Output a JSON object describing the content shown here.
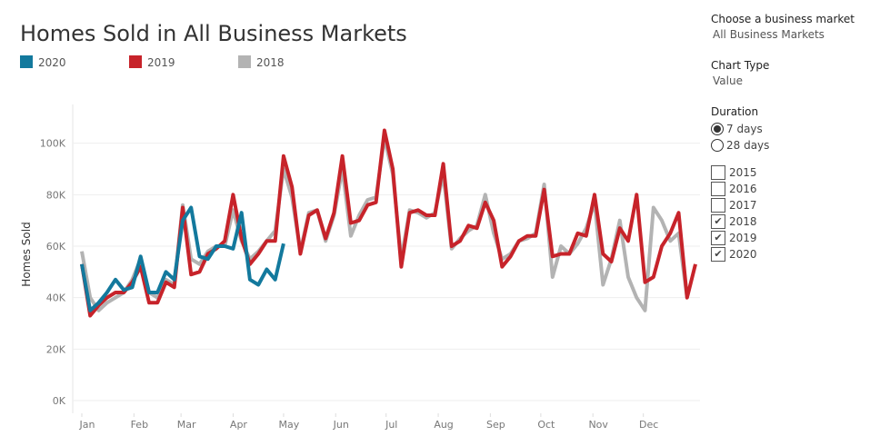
{
  "chart_data": {
    "type": "line",
    "title": "Homes Sold in All Business Markets",
    "y_label": "Homes Sold",
    "x": [
      1,
      6,
      11,
      16,
      21,
      26,
      31,
      36,
      41,
      46,
      51,
      56,
      61,
      66,
      71,
      76,
      81,
      86,
      91,
      96,
      101,
      106,
      111,
      116,
      121,
      126,
      131,
      136,
      141,
      146,
      151,
      156,
      161,
      166,
      171,
      176,
      181,
      186,
      191,
      196,
      201,
      206,
      211,
      216,
      221,
      226,
      231,
      236,
      241,
      246,
      251,
      256,
      261,
      266,
      271,
      276,
      281,
      286,
      291,
      296,
      301,
      306,
      311,
      316,
      321,
      326,
      331,
      336,
      341,
      346,
      351,
      356,
      361,
      366
    ],
    "xlim": [
      1,
      366
    ],
    "xticks": [
      {
        "value": 1,
        "label": "Jan"
      },
      {
        "value": 32,
        "label": "Feb"
      },
      {
        "value": 60,
        "label": "Mar"
      },
      {
        "value": 91,
        "label": "Apr"
      },
      {
        "value": 121,
        "label": "May"
      },
      {
        "value": 152,
        "label": "Jun"
      },
      {
        "value": 182,
        "label": "Jul"
      },
      {
        "value": 213,
        "label": "Aug"
      },
      {
        "value": 244,
        "label": "Sep"
      },
      {
        "value": 274,
        "label": "Oct"
      },
      {
        "value": 305,
        "label": "Nov"
      },
      {
        "value": 335,
        "label": "Dec"
      }
    ],
    "ylim": [
      0,
      108000
    ],
    "yticks": [
      {
        "value": 0,
        "label": "0K"
      },
      {
        "value": 20000,
        "label": "20K"
      },
      {
        "value": 40000,
        "label": "40K"
      },
      {
        "value": 60000,
        "label": "60K"
      },
      {
        "value": 80000,
        "label": "80K"
      },
      {
        "value": 100000,
        "label": "100K"
      }
    ],
    "grid": true,
    "series": [
      {
        "name": "2018",
        "color": "#b3b3b3",
        "values": [
          58000,
          40000,
          35000,
          38000,
          40000,
          42000,
          47000,
          55000,
          42000,
          40000,
          47000,
          45000,
          76000,
          55000,
          53000,
          58000,
          60000,
          60000,
          74000,
          62000,
          55000,
          58000,
          62000,
          66000,
          90000,
          79000,
          58000,
          73000,
          74000,
          62000,
          72000,
          90000,
          64000,
          72000,
          78000,
          79000,
          102000,
          88000,
          55000,
          74000,
          73000,
          71000,
          73000,
          88000,
          59000,
          63000,
          66000,
          68000,
          80000,
          65000,
          55000,
          57000,
          62000,
          63000,
          65000,
          84000,
          48000,
          60000,
          57000,
          61000,
          67000,
          77000,
          45000,
          55000,
          70000,
          48000,
          40000,
          35000,
          75000,
          70000,
          62000,
          65000,
          40000,
          null
        ]
      },
      {
        "name": "2019",
        "color": "#c7232a",
        "values": [
          53000,
          33000,
          37000,
          40000,
          42000,
          42000,
          46000,
          52000,
          38000,
          38000,
          46000,
          44000,
          75000,
          49000,
          50000,
          57000,
          59000,
          62000,
          80000,
          63000,
          53000,
          57000,
          62000,
          62000,
          95000,
          83000,
          57000,
          72000,
          74000,
          63000,
          73000,
          95000,
          69000,
          70000,
          76000,
          77000,
          105000,
          90000,
          52000,
          73000,
          74000,
          72000,
          72000,
          92000,
          60000,
          62000,
          68000,
          67000,
          77000,
          70000,
          52000,
          56000,
          62000,
          64000,
          64000,
          82000,
          56000,
          57000,
          57000,
          65000,
          64000,
          80000,
          57000,
          54000,
          67000,
          62000,
          80000,
          46000,
          48000,
          60000,
          65000,
          73000,
          40000,
          53000
        ]
      },
      {
        "name": "2020",
        "color": "#13799d",
        "values": [
          53000,
          35000,
          38000,
          42000,
          47000,
          43000,
          44000,
          56000,
          42000,
          42000,
          50000,
          47000,
          70000,
          75000,
          56000,
          55000,
          60000,
          60000,
          59000,
          73000,
          47000,
          45000,
          51000,
          47000,
          61000,
          null,
          null,
          null,
          null,
          null,
          null,
          null,
          null,
          null,
          null,
          null,
          null,
          null,
          null,
          null,
          null,
          null,
          null,
          null,
          null,
          null,
          null,
          null,
          null,
          null,
          null,
          null,
          null,
          null,
          null,
          null,
          null,
          null,
          null,
          null,
          null,
          null,
          null,
          null,
          null,
          null,
          null,
          null,
          null,
          null,
          null,
          null,
          null,
          null
        ]
      }
    ]
  },
  "controls": {
    "market": {
      "label": "Choose a business market",
      "value": "All Business Markets"
    },
    "chart_type": {
      "label": "Chart Type",
      "value": "Value"
    },
    "duration": {
      "label": "Duration",
      "options": [
        {
          "text": "7 days",
          "selected": true
        },
        {
          "text": "28 days",
          "selected": false
        }
      ]
    },
    "years": [
      {
        "text": "2015",
        "checked": false
      },
      {
        "text": "2016",
        "checked": false
      },
      {
        "text": "2017",
        "checked": false
      },
      {
        "text": "2018",
        "checked": true
      },
      {
        "text": "2019",
        "checked": true
      },
      {
        "text": "2020",
        "checked": true
      }
    ],
    "check_mark": "✔"
  }
}
